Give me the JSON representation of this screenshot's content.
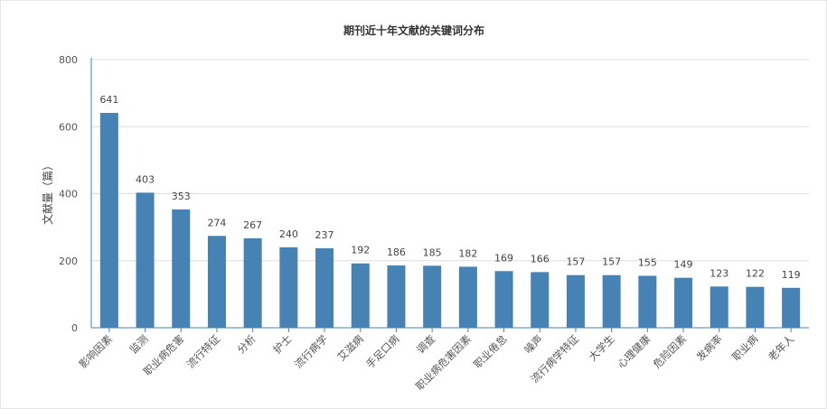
{
  "chart_data": {
    "type": "bar",
    "title": "期刊近十年文献的关键词分布",
    "xlabel": "",
    "ylabel": "文献量（篇）",
    "ylim": [
      0,
      800
    ],
    "yticks": [
      0,
      200,
      400,
      600,
      800
    ],
    "grid": true,
    "categories": [
      "影响因素",
      "监测",
      "职业病危害",
      "流行特征",
      "分析",
      "护士",
      "流行病学",
      "艾滋病",
      "手足口病",
      "调查",
      "职业病危害因素",
      "职业倦怠",
      "噪声",
      "流行病学特征",
      "大学生",
      "心理健康",
      "危险因素",
      "发病率",
      "职业病",
      "老年人"
    ],
    "values": [
      641,
      403,
      353,
      274,
      267,
      240,
      237,
      192,
      186,
      185,
      182,
      169,
      166,
      157,
      157,
      155,
      149,
      123,
      122,
      119
    ],
    "colors": {
      "bar": "#4682b4",
      "axis": "#4682b4",
      "grid": "#dddddd"
    }
  }
}
